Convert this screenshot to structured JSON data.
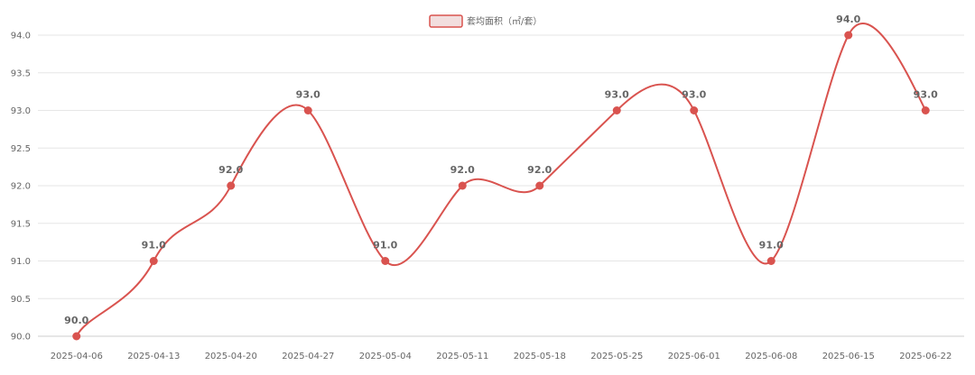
{
  "chart_data": {
    "type": "line",
    "smooth": true,
    "categories": [
      "2025-04-06",
      "2025-04-13",
      "2025-04-20",
      "2025-04-27",
      "2025-05-04",
      "2025-05-11",
      "2025-05-18",
      "2025-05-25",
      "2025-06-01",
      "2025-06-08",
      "2025-06-15",
      "2025-06-22"
    ],
    "series": [
      {
        "name": "套均面积（㎡/套）",
        "values": [
          90.0,
          91.0,
          92.0,
          93.0,
          91.0,
          92.0,
          92.0,
          93.0,
          93.0,
          91.0,
          94.0,
          93.0
        ],
        "color": "#d9534f"
      }
    ],
    "data_labels": [
      "90.0",
      "91.0",
      "92.0",
      "93.0",
      "91.0",
      "92.0",
      "92.0",
      "93.0",
      "93.0",
      "91.0",
      "94.0",
      "93.0"
    ],
    "ylim": [
      90.0,
      94.0
    ],
    "yticks": [
      "90.0",
      "90.5",
      "91.0",
      "91.5",
      "92.0",
      "92.5",
      "93.0",
      "93.5",
      "94.0"
    ],
    "grid": true,
    "legend_position": "top-center",
    "colors": {
      "line": "#d9534f",
      "legend_fill": "#f2dede",
      "grid": "#e6e6e6",
      "text": "#666666"
    }
  }
}
